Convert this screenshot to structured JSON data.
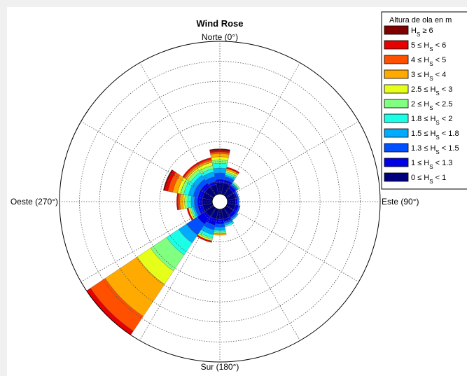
{
  "chart_data": {
    "type": "wind-rose",
    "title": "Wind Rose",
    "direction_labels": {
      "north": "Norte (0°)",
      "east": "Este (90°)",
      "south": "Sur (180°)",
      "west": "Oeste (270°)"
    },
    "legend": {
      "title": "Altura de ola en m",
      "entries": [
        {
          "lhs": "H",
          "sub": "S",
          "rhs": " ≥ 6",
          "color": "#800000"
        },
        {
          "lhs": "5 ≤ H",
          "sub": "S",
          "rhs": " < 6",
          "color": "#e60000"
        },
        {
          "lhs": "4 ≤ H",
          "sub": "S",
          "rhs": " < 5",
          "color": "#ff5000"
        },
        {
          "lhs": "3 ≤ H",
          "sub": "S",
          "rhs": " < 4",
          "color": "#ffaa00"
        },
        {
          "lhs": "2.5 ≤ H",
          "sub": "S",
          "rhs": " < 3",
          "color": "#e6ff1a"
        },
        {
          "lhs": "2 ≤ H",
          "sub": "S",
          "rhs": " < 2.5",
          "color": "#80ff80"
        },
        {
          "lhs": "1.8 ≤ H",
          "sub": "S",
          "rhs": " < 2",
          "color": "#1affe6"
        },
        {
          "lhs": "1.5 ≤ H",
          "sub": "S",
          "rhs": " < 1.8",
          "color": "#00aaff"
        },
        {
          "lhs": "1.3 ≤ H",
          "sub": "S",
          "rhs": " < 1.5",
          "color": "#0050ff"
        },
        {
          "lhs": "1 ≤ H",
          "sub": "S",
          "rhs": " < 1.3",
          "color": "#0000e6"
        },
        {
          "lhs": "0 ≤ H",
          "sub": "S",
          "rhs": " < 1",
          "color": "#00007f"
        }
      ]
    },
    "direction_bins_deg": [
      0,
      22.5,
      45,
      67.5,
      90,
      112.5,
      135,
      157.5,
      180,
      202.5,
      225,
      247.5,
      270,
      292.5,
      315,
      337.5
    ],
    "sector_width_deg": 22.5,
    "radial_rings": 8,
    "sectors": [
      {
        "direction": 0,
        "cumulative": [
          0.12,
          0.14,
          0.18,
          0.21,
          0.24,
          0.26,
          0.28,
          0.3,
          0.31,
          0.32,
          0.33
        ]
      },
      {
        "direction": 22.5,
        "cumulative": [
          0.12,
          0.14,
          0.16,
          0.17,
          0.18,
          0.19,
          0.2,
          0.21,
          0.21,
          0.22,
          0.22
        ]
      },
      {
        "direction": 45,
        "cumulative": [
          0.1,
          0.12,
          0.13,
          0.14,
          0.14,
          0.15,
          0.15,
          0.15,
          0.15,
          0.15,
          0.15
        ]
      },
      {
        "direction": 67.5,
        "cumulative": [
          0.1,
          0.11,
          0.12,
          0.12,
          0.12,
          0.12,
          0.12,
          0.12,
          0.12,
          0.12,
          0.12
        ]
      },
      {
        "direction": 90,
        "cumulative": [
          0.1,
          0.11,
          0.12,
          0.12,
          0.12,
          0.12,
          0.12,
          0.12,
          0.12,
          0.12,
          0.12
        ]
      },
      {
        "direction": 112.5,
        "cumulative": [
          0.1,
          0.12,
          0.13,
          0.13,
          0.13,
          0.13,
          0.13,
          0.13,
          0.13,
          0.13,
          0.13
        ]
      },
      {
        "direction": 135,
        "cumulative": [
          0.1,
          0.12,
          0.13,
          0.14,
          0.14,
          0.14,
          0.14,
          0.14,
          0.14,
          0.14,
          0.14
        ]
      },
      {
        "direction": 157.5,
        "cumulative": [
          0.11,
          0.13,
          0.14,
          0.15,
          0.16,
          0.16,
          0.16,
          0.16,
          0.16,
          0.16,
          0.16
        ]
      },
      {
        "direction": 180,
        "cumulative": [
          0.11,
          0.14,
          0.16,
          0.18,
          0.19,
          0.2,
          0.2,
          0.21,
          0.21,
          0.21,
          0.21
        ]
      },
      {
        "direction": 202.5,
        "cumulative": [
          0.11,
          0.15,
          0.18,
          0.21,
          0.23,
          0.24,
          0.25,
          0.25,
          0.25,
          0.26,
          0.26
        ]
      },
      {
        "direction": 225,
        "cumulative": [
          0.11,
          0.17,
          0.25,
          0.31,
          0.4,
          0.52,
          0.62,
          0.86,
          0.97,
          1.0,
          1.0
        ]
      },
      {
        "direction": 247.5,
        "cumulative": [
          0.11,
          0.14,
          0.16,
          0.17,
          0.18,
          0.19,
          0.2,
          0.2,
          0.2,
          0.21,
          0.21
        ]
      },
      {
        "direction": 270,
        "cumulative": [
          0.11,
          0.14,
          0.16,
          0.18,
          0.2,
          0.22,
          0.23,
          0.25,
          0.26,
          0.27,
          0.27
        ]
      },
      {
        "direction": 292.5,
        "cumulative": [
          0.11,
          0.14,
          0.17,
          0.2,
          0.23,
          0.25,
          0.27,
          0.3,
          0.33,
          0.35,
          0.36
        ]
      },
      {
        "direction": 315,
        "cumulative": [
          0.11,
          0.14,
          0.17,
          0.2,
          0.22,
          0.24,
          0.25,
          0.26,
          0.27,
          0.28,
          0.28
        ]
      },
      {
        "direction": 337.5,
        "cumulative": [
          0.11,
          0.13,
          0.16,
          0.19,
          0.21,
          0.23,
          0.25,
          0.26,
          0.27,
          0.28,
          0.28
        ]
      }
    ]
  }
}
